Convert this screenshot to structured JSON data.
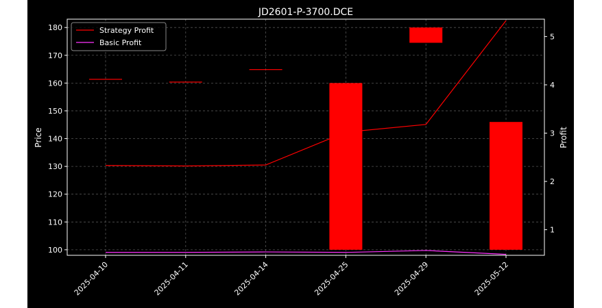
{
  "chart_data": {
    "type": "candlestick+line",
    "title": "JD2601-P-3700.DCE",
    "xlabel": "",
    "ylabel_left": "Price",
    "ylabel_right": "Profit",
    "categories": [
      "2025-04-10",
      "2025-04-11",
      "2025-04-14",
      "2025-04-25",
      "2025-04-29",
      "2025-05-12"
    ],
    "y_left": {
      "lim": [
        98,
        183
      ],
      "ticks": [
        100,
        110,
        120,
        130,
        140,
        150,
        160,
        170,
        180
      ]
    },
    "y_right": {
      "lim": [
        0.47,
        5.36
      ],
      "ticks": [
        1,
        2,
        3,
        4,
        5
      ]
    },
    "candles": [
      {
        "date": "2025-04-10",
        "open": 161.5,
        "close": 161.5
      },
      {
        "date": "2025-04-11",
        "open": 160.5,
        "close": 160.5
      },
      {
        "date": "2025-04-14",
        "open": 165.0,
        "close": 165.0
      },
      {
        "date": "2025-04-25",
        "open": 160.0,
        "close": 100.0
      },
      {
        "date": "2025-04-29",
        "open": 180.0,
        "close": 174.5
      },
      {
        "date": "2025-05-12",
        "open": 146.0,
        "close": 100.0
      }
    ],
    "series": [
      {
        "name": "Strategy Profit",
        "color": "#ff0000",
        "values": [
          2.33,
          2.32,
          2.34,
          3.02,
          3.18,
          5.33
        ]
      },
      {
        "name": "Basic Profit",
        "color": "#ff33ff",
        "values": [
          0.53,
          0.53,
          0.54,
          0.53,
          0.57,
          0.49
        ]
      }
    ],
    "candle_color": "#ff0000",
    "grid": true,
    "legend_placement": "upper-left",
    "background": "#000000"
  }
}
